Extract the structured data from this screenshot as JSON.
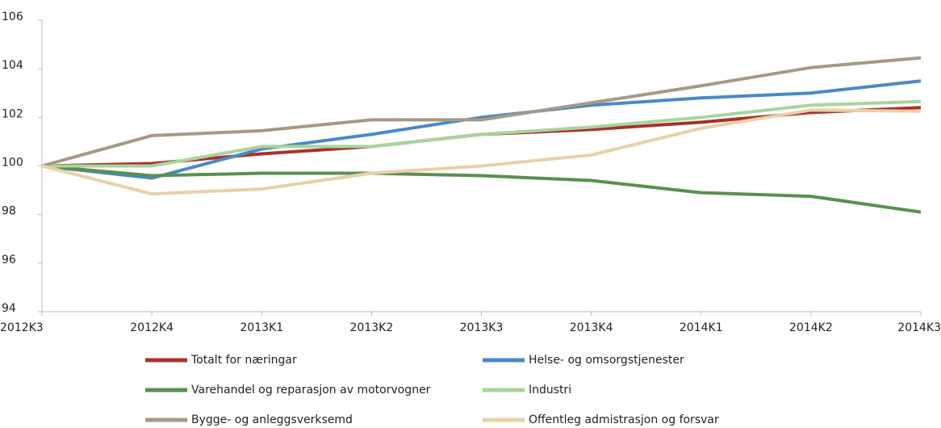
{
  "chart_data": {
    "type": "line",
    "categories": [
      "2012K3",
      "2012K4",
      "2013K1",
      "2013K2",
      "2013K3",
      "2013K4",
      "2014K1",
      "2014K2",
      "2014K3"
    ],
    "series": [
      {
        "name": "Totalt for næringar",
        "color": "#a8322a",
        "values": [
          100,
          100.1,
          100.5,
          100.8,
          101.3,
          101.5,
          101.8,
          102.2,
          102.4
        ]
      },
      {
        "name": "Helse- og omsorgstjenester",
        "color": "#4a89c8",
        "values": [
          100,
          99.5,
          100.7,
          101.3,
          102.0,
          102.5,
          102.8,
          103.0,
          103.5
        ]
      },
      {
        "name": "Varehandel og reparasjon av motorvogner",
        "color": "#5b8f50",
        "values": [
          100,
          99.6,
          99.7,
          99.7,
          99.6,
          99.4,
          98.9,
          98.75,
          98.1
        ]
      },
      {
        "name": "Industri",
        "color": "#a9d49e",
        "values": [
          100,
          100.0,
          100.8,
          100.8,
          101.3,
          101.6,
          102.0,
          102.5,
          102.65
        ]
      },
      {
        "name": "Bygge- og anleggsverksemd",
        "color": "#a59a88",
        "values": [
          100,
          101.25,
          101.45,
          101.9,
          101.9,
          102.6,
          103.3,
          104.05,
          104.45
        ]
      },
      {
        "name": "Offentleg admistrasjon og forsvar",
        "color": "#ead0a8",
        "values": [
          100,
          98.85,
          99.05,
          99.7,
          100.0,
          100.45,
          101.55,
          102.3,
          102.25
        ]
      }
    ],
    "ylim": [
      94,
      106
    ],
    "yticks": [
      94,
      96,
      98,
      100,
      102,
      104,
      106
    ],
    "grid": false
  }
}
